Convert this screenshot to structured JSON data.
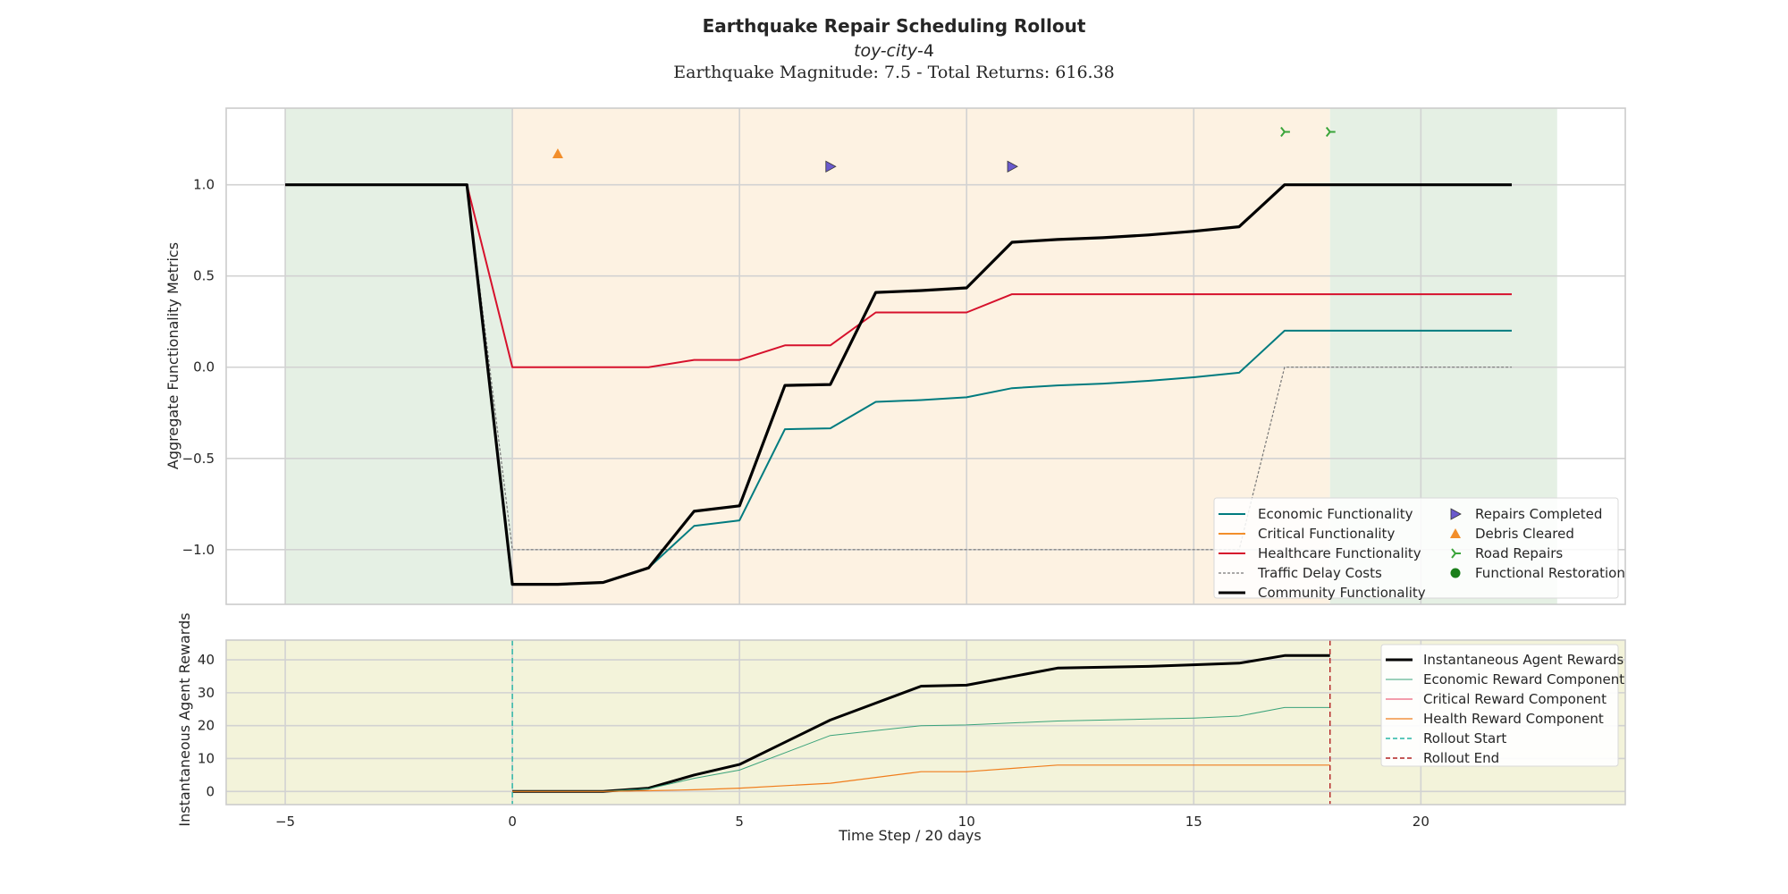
{
  "chart_data": {
    "type": "line",
    "title": "Earthquake Repair Scheduling Rollout",
    "subtitle_italic": "toy-city",
    "subtitle_suffix": "-4",
    "subtitle_line3": "Earthquake Magnitude: 7.5 - Total Returns: 616.38",
    "xlabel": "Time Step / 20 days",
    "x_ticks": [
      -5,
      0,
      5,
      10,
      15,
      20
    ],
    "xlim": [
      -6.3,
      24.5
    ],
    "top_panel": {
      "ylabel": "Aggregate Functionality Metrics",
      "ylim": [
        -1.3,
        1.42
      ],
      "y_ticks": [
        -1.0,
        -0.5,
        0.0,
        0.5,
        1.0
      ],
      "y_tick_labels": [
        "−1.0",
        "−0.5",
        "0.0",
        "0.5",
        "1.0"
      ],
      "shaded_regions": [
        {
          "from": -5,
          "to": 0,
          "color": "#e5f0e4"
        },
        {
          "from": 0,
          "to": 18,
          "color": "#fdf2e2"
        },
        {
          "from": 18,
          "to": 23,
          "color": "#e5f0e4"
        }
      ],
      "series": [
        {
          "name": "Economic Functionality",
          "color": "#007b7f",
          "width": 2,
          "dash": "",
          "points": [
            [
              -5,
              1.0
            ],
            [
              -1,
              1.0
            ],
            [
              0,
              -1.19
            ],
            [
              1,
              -1.19
            ],
            [
              2,
              -1.18
            ],
            [
              3,
              -1.1
            ],
            [
              4,
              -0.87
            ],
            [
              5,
              -0.84
            ],
            [
              6,
              -0.34
            ],
            [
              7,
              -0.335
            ],
            [
              8,
              -0.19
            ],
            [
              9,
              -0.18
            ],
            [
              10,
              -0.165
            ],
            [
              11,
              -0.115
            ],
            [
              12,
              -0.1
            ],
            [
              13,
              -0.09
            ],
            [
              14,
              -0.075
            ],
            [
              15,
              -0.055
            ],
            [
              16,
              -0.03
            ],
            [
              17,
              0.2
            ],
            [
              22,
              0.2
            ]
          ]
        },
        {
          "name": "Critical Functionality",
          "color": "#f28e2b",
          "width": 2,
          "dash": "",
          "points": []
        },
        {
          "name": "Healthcare Functionality",
          "color": "#d6112c",
          "width": 2,
          "dash": "",
          "points": [
            [
              -5,
              1.0
            ],
            [
              -1,
              1.0
            ],
            [
              0,
              0.0
            ],
            [
              3,
              0.0
            ],
            [
              4,
              0.04
            ],
            [
              5,
              0.04
            ],
            [
              6,
              0.12
            ],
            [
              7,
              0.12
            ],
            [
              8,
              0.3
            ],
            [
              10,
              0.3
            ],
            [
              11,
              0.4
            ],
            [
              22,
              0.4
            ]
          ]
        },
        {
          "name": "Traffic Delay Costs",
          "color": "#777777",
          "width": 1.2,
          "dash": "3,2",
          "points": [
            [
              -5,
              1.0
            ],
            [
              -1,
              1.0
            ],
            [
              0,
              -1.0
            ],
            [
              16,
              -1.0
            ],
            [
              17,
              0.0
            ],
            [
              22,
              0.0
            ]
          ]
        },
        {
          "name": "Community Functionality",
          "color": "#000000",
          "width": 3.2,
          "dash": "",
          "points": [
            [
              -5,
              1.0
            ],
            [
              -1,
              1.0
            ],
            [
              0,
              -1.19
            ],
            [
              1,
              -1.19
            ],
            [
              2,
              -1.18
            ],
            [
              3,
              -1.1
            ],
            [
              4,
              -0.79
            ],
            [
              5,
              -0.76
            ],
            [
              6,
              -0.1
            ],
            [
              7,
              -0.095
            ],
            [
              8,
              0.41
            ],
            [
              9,
              0.42
            ],
            [
              10,
              0.435
            ],
            [
              11,
              0.685
            ],
            [
              12,
              0.7
            ],
            [
              13,
              0.71
            ],
            [
              14,
              0.725
            ],
            [
              15,
              0.745
            ],
            [
              16,
              0.77
            ],
            [
              17,
              1.0
            ],
            [
              22,
              1.0
            ]
          ]
        }
      ],
      "markers": [
        {
          "name": "Repairs Completed",
          "shape": "triangle-right",
          "color": "#6a5acd",
          "points": [
            [
              7,
              1.1
            ],
            [
              11,
              1.1
            ]
          ]
        },
        {
          "name": "Debris Cleared",
          "shape": "triangle-up",
          "color": "#f28e2b",
          "points": [
            [
              1,
              1.17
            ]
          ]
        },
        {
          "name": "Road Repairs",
          "shape": "tri-right",
          "color": "#3aa53a",
          "points": [
            [
              17,
              1.29
            ],
            [
              18,
              1.29
            ]
          ]
        },
        {
          "name": "Functional Restoration",
          "shape": "circle",
          "color": "#1a7f1a",
          "points": []
        }
      ],
      "legend": {
        "placement": "lower-right",
        "col1": [
          "Economic Functionality",
          "Critical Functionality",
          "Healthcare Functionality",
          "Traffic Delay Costs",
          "Community Functionality"
        ],
        "col2": [
          "Repairs Completed",
          "Debris Cleared",
          "Road Repairs",
          "Functional Restoration"
        ]
      }
    },
    "bottom_panel": {
      "ylabel": "Instantaneous Agent Rewards",
      "ylim": [
        -4,
        46
      ],
      "y_ticks": [
        0,
        10,
        20,
        30,
        40
      ],
      "background": "#f3f3da",
      "series": [
        {
          "name": "Instantaneous Agent Rewards",
          "color": "#000000",
          "width": 3,
          "dash": "",
          "points": [
            [
              0,
              0
            ],
            [
              2,
              0
            ],
            [
              3,
              1
            ],
            [
              4,
              5
            ],
            [
              5,
              8.2
            ],
            [
              7,
              21.7
            ],
            [
              9,
              32
            ],
            [
              10,
              32.3
            ],
            [
              12,
              37.5
            ],
            [
              14,
              38
            ],
            [
              15,
              38.5
            ],
            [
              16,
              39
            ],
            [
              17,
              41.3
            ],
            [
              18,
              41.3
            ]
          ]
        },
        {
          "name": "Economic Reward Component",
          "color": "#3aa37a",
          "width": 1,
          "dash": "",
          "points": [
            [
              0,
              0
            ],
            [
              2,
              0
            ],
            [
              3,
              0.8
            ],
            [
              4,
              4
            ],
            [
              5,
              6.5
            ],
            [
              7,
              17
            ],
            [
              9,
              20
            ],
            [
              10,
              20.2
            ],
            [
              12,
              21.4
            ],
            [
              14,
              22
            ],
            [
              15,
              22.3
            ],
            [
              16,
              22.9
            ],
            [
              17,
              25.5
            ],
            [
              18,
              25.5
            ]
          ]
        },
        {
          "name": "Critical Reward Component",
          "color": "#e83c5c",
          "width": 1,
          "dash": "",
          "points": []
        },
        {
          "name": "Health Reward Component",
          "color": "#f07d1c",
          "width": 1.2,
          "dash": "",
          "points": [
            [
              0,
              0
            ],
            [
              2,
              0
            ],
            [
              3,
              0.2
            ],
            [
              4,
              0.5
            ],
            [
              5,
              1
            ],
            [
              7,
              2.5
            ],
            [
              9,
              6
            ],
            [
              10,
              6
            ],
            [
              12,
              8
            ],
            [
              18,
              8
            ]
          ]
        },
        {
          "name": "Rollout Start",
          "color": "#26b5a5",
          "width": 1.4,
          "dash": "6,4",
          "vline": 0
        },
        {
          "name": "Rollout End",
          "color": "#b22222",
          "width": 1.4,
          "dash": "6,4",
          "vline": 18
        }
      ],
      "legend": {
        "placement": "upper-right",
        "entries": [
          "Instantaneous Agent Rewards",
          "Economic Reward Component",
          "Critical Reward Component",
          "Health Reward Component",
          "Rollout Start",
          "Rollout End"
        ]
      }
    }
  }
}
